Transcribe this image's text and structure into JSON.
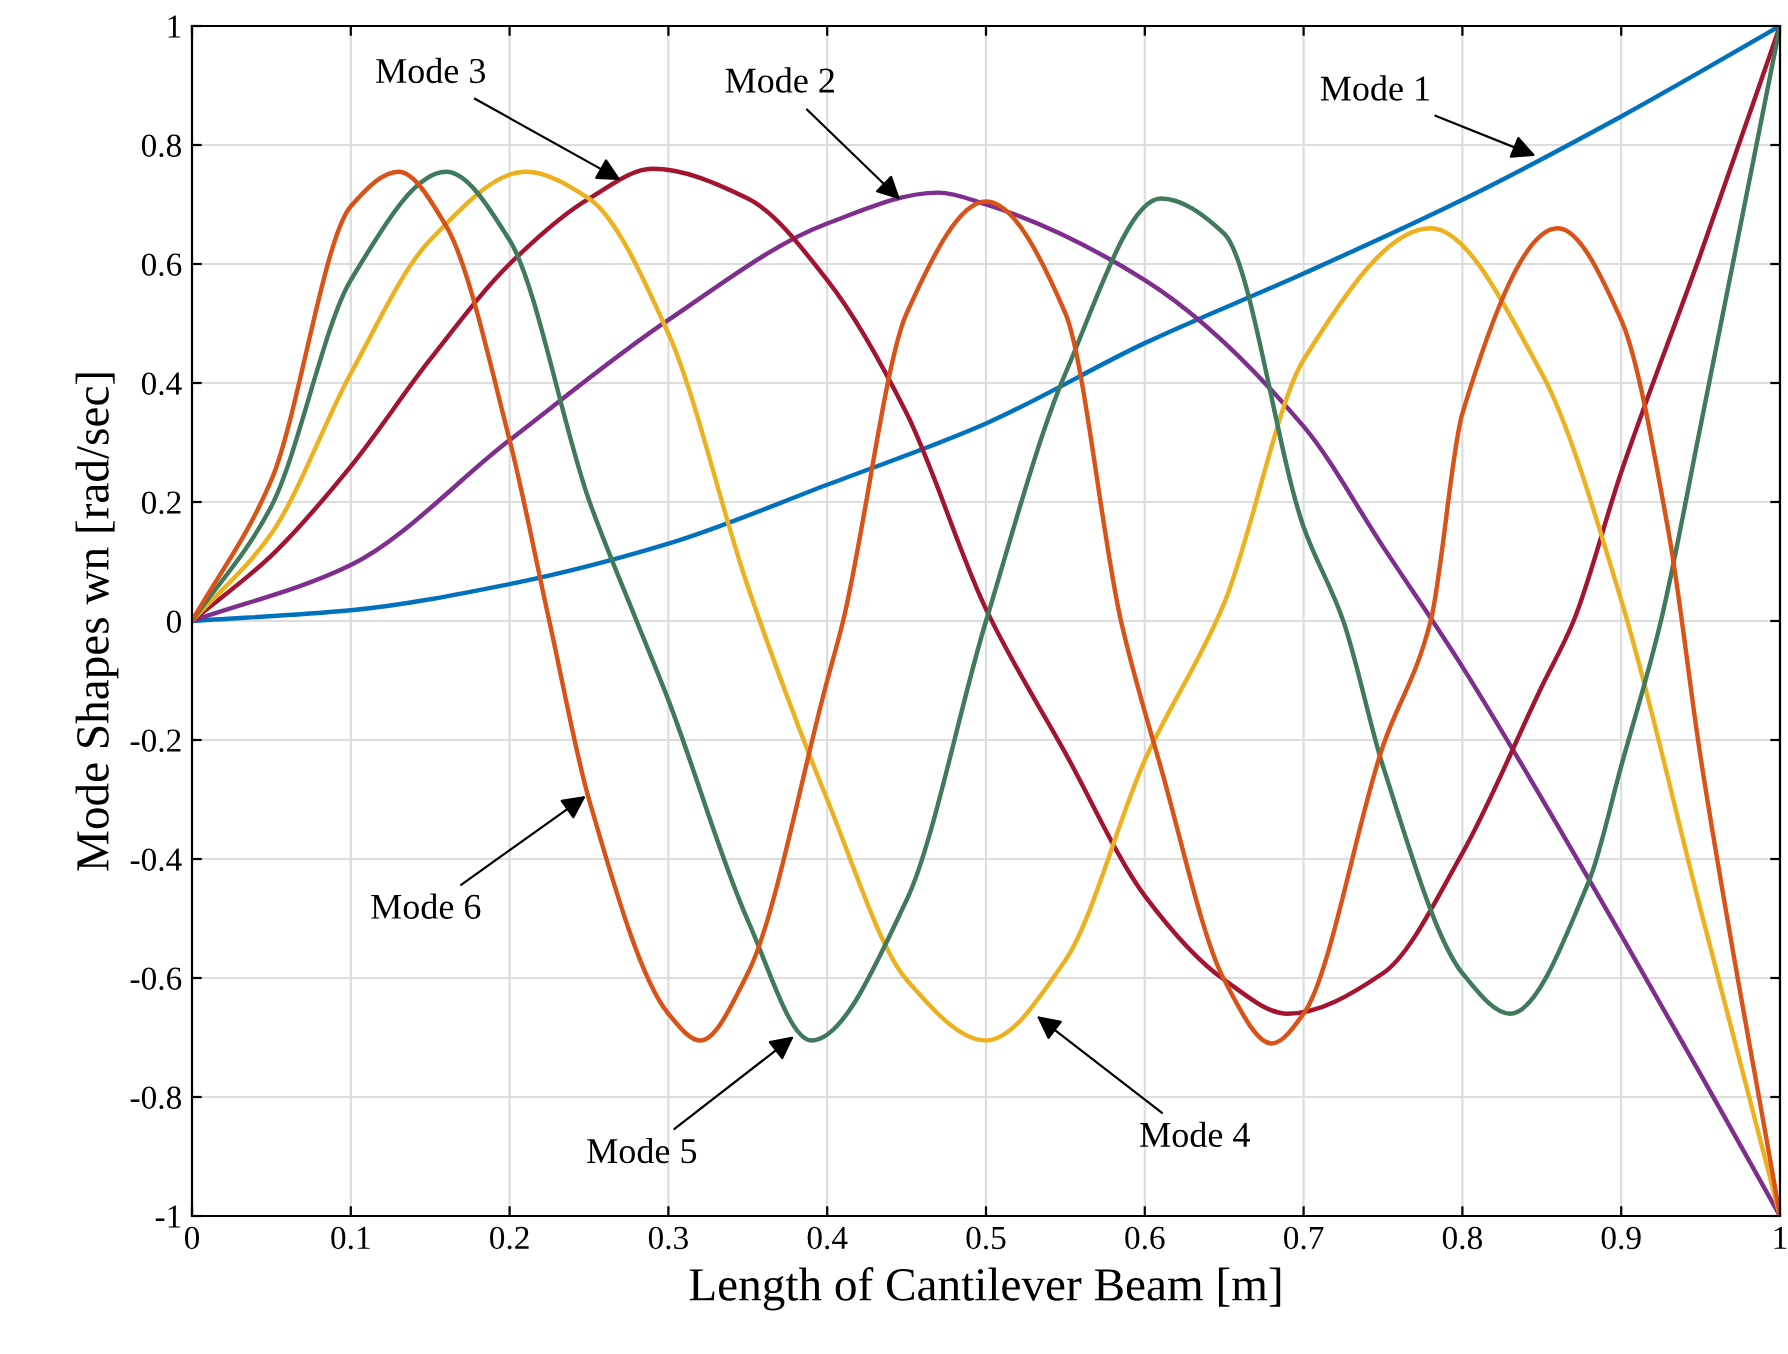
{
  "chart_data": {
    "type": "line",
    "xlabel": "Length of Cantilever Beam [m]",
    "ylabel": "Mode Shapes wn [rad/sec]",
    "xlim": [
      0,
      1
    ],
    "ylim": [
      -1,
      1
    ],
    "xticks": [
      0,
      0.1,
      0.2,
      0.3,
      0.4,
      0.5,
      0.6,
      0.7,
      0.8,
      0.9,
      1
    ],
    "yticks": [
      -1,
      -0.8,
      -0.6,
      -0.4,
      -0.2,
      0,
      0.2,
      0.4,
      0.6,
      0.8,
      1
    ],
    "grid": true,
    "line_style": "solid",
    "marker": "none",
    "series": [
      {
        "color": "#0072bd",
        "x": [
          0,
          0.1,
          0.2,
          0.3,
          0.4,
          0.5,
          0.6,
          0.7,
          0.8,
          0.9,
          1
        ],
        "values": [
          0,
          0.018,
          0.062,
          0.13,
          0.229,
          0.332,
          0.467,
          0.584,
          0.708,
          0.848,
          1
        ]
      },
      {
        "color": "#7e2f8e",
        "x": [
          0,
          0.1,
          0.2,
          0.3,
          0.4,
          0.47,
          0.5,
          0.6,
          0.7,
          0.75,
          0.8,
          0.9,
          0.95,
          1
        ],
        "values": [
          0,
          0.094,
          0.304,
          0.506,
          0.668,
          0.72,
          0.7,
          0.573,
          0.327,
          0.125,
          -0.077,
          -0.528,
          -0.762,
          -1
        ]
      },
      {
        "color": "#a2142f",
        "x": [
          0,
          0.05,
          0.1,
          0.15,
          0.2,
          0.25,
          0.29,
          0.35,
          0.4,
          0.45,
          0.5,
          0.55,
          0.6,
          0.65,
          0.69,
          0.75,
          0.8,
          0.85,
          0.87,
          0.9,
          0.95,
          1
        ],
        "values": [
          0,
          0.11,
          0.26,
          0.44,
          0.6,
          0.71,
          0.76,
          0.71,
          0.573,
          0.349,
          0.02,
          -0.222,
          -0.462,
          -0.603,
          -0.66,
          -0.592,
          -0.39,
          -0.11,
          0,
          0.25,
          0.617,
          1
        ]
      },
      {
        "color": "#edb120",
        "x": [
          0,
          0.05,
          0.1,
          0.15,
          0.21,
          0.25,
          0.3,
          0.35,
          0.4,
          0.45,
          0.5,
          0.55,
          0.6,
          0.65,
          0.7,
          0.78,
          0.85,
          0.9,
          0.95,
          1
        ],
        "values": [
          0,
          0.147,
          0.416,
          0.64,
          0.755,
          0.71,
          0.483,
          0.058,
          -0.3,
          -0.603,
          -0.705,
          -0.57,
          -0.234,
          0.03,
          0.439,
          0.66,
          0.416,
          0.035,
          -0.485,
          -1
        ]
      },
      {
        "color": "#3f7a5c",
        "x": [
          0,
          0.05,
          0.1,
          0.16,
          0.2,
          0.25,
          0.28,
          0.3,
          0.35,
          0.39,
          0.45,
          0.5,
          0.55,
          0.61,
          0.65,
          0.7,
          0.725,
          0.75,
          0.8,
          0.83,
          0.88,
          0.9,
          0.925,
          0.95,
          1
        ],
        "values": [
          0,
          0.193,
          0.573,
          0.755,
          0.64,
          0.203,
          0,
          -0.133,
          -0.503,
          -0.705,
          -0.469,
          0,
          0.416,
          0.71,
          0.651,
          0.158,
          0,
          -0.244,
          -0.592,
          -0.66,
          -0.435,
          -0.244,
          0,
          0.328,
          1
        ]
      },
      {
        "color": "#d95319",
        "x": [
          0,
          0.05,
          0.1,
          0.13,
          0.16,
          0.2,
          0.225,
          0.25,
          0.3,
          0.32,
          0.35,
          0.4,
          0.41,
          0.45,
          0.5,
          0.55,
          0.585,
          0.61,
          0.65,
          0.68,
          0.7,
          0.75,
          0.78,
          0.8,
          0.86,
          0.9,
          0.93,
          0.95,
          1
        ],
        "values": [
          0,
          0.237,
          0.697,
          0.755,
          0.664,
          0.304,
          0,
          -0.3,
          -0.66,
          -0.705,
          -0.592,
          -0.1,
          0,
          0.517,
          0.705,
          0.517,
          0,
          -0.245,
          -0.603,
          -0.71,
          -0.66,
          -0.21,
          0,
          0.349,
          0.66,
          0.506,
          0.147,
          -0.229,
          -1
        ]
      }
    ],
    "annotations": [
      {
        "text": "Mode 1",
        "x": 0.846,
        "y": 0.782
      },
      {
        "text": "Mode 2",
        "x": 0.446,
        "y": 0.708
      },
      {
        "text": "Mode 3",
        "x": 0.27,
        "y": 0.741
      },
      {
        "text": "Mode 6",
        "x": 0.248,
        "y": -0.294
      },
      {
        "text": "Mode 5",
        "x": 0.379,
        "y": -0.698
      },
      {
        "text": "Mode 4",
        "x": 0.532,
        "y": -0.664
      }
    ]
  }
}
